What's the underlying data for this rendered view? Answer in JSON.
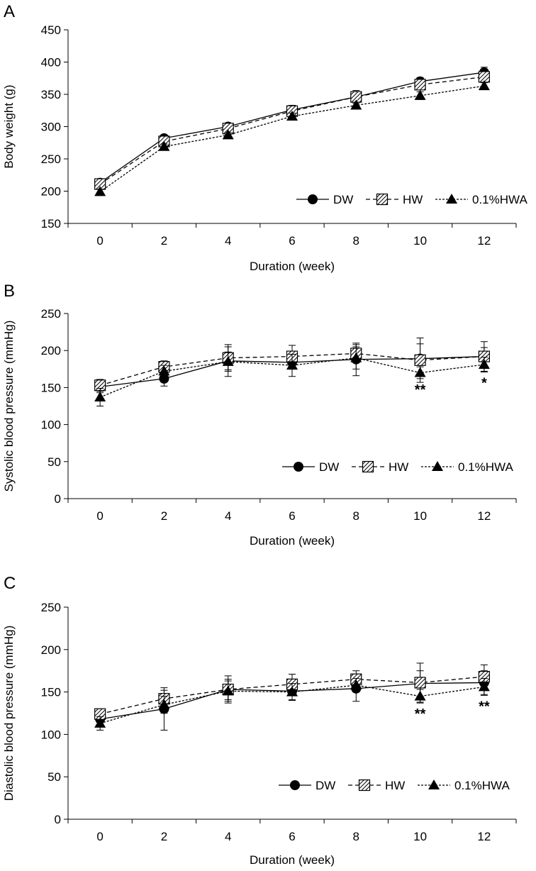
{
  "legend_items": [
    {
      "key": "DW",
      "label": "DW",
      "marker": "circle",
      "dash": "solid"
    },
    {
      "key": "HW",
      "label": "HW",
      "marker": "hatched-square",
      "dash": "dashed"
    },
    {
      "key": "HWA",
      "label": "0.1%HWA",
      "marker": "triangle",
      "dash": "dotted"
    }
  ],
  "chart_data": [
    {
      "panel_label": "A",
      "type": "line",
      "ylabel": "Body weight (g)",
      "xlabel": "Duration (week)",
      "categories": [
        "0",
        "2",
        "4",
        "6",
        "8",
        "10",
        "12"
      ],
      "ylim": [
        150,
        450
      ],
      "yticks": [
        150,
        200,
        250,
        300,
        350,
        400,
        450
      ],
      "legend_position": "bottom-right",
      "series": [
        {
          "name": "DW",
          "values": [
            213,
            282,
            300,
            326,
            346,
            370,
            384
          ],
          "errors": [
            5,
            5,
            5,
            7,
            6,
            6,
            8
          ]
        },
        {
          "name": "HW",
          "values": [
            211,
            277,
            297,
            324,
            346,
            365,
            377
          ],
          "errors": [
            5,
            5,
            5,
            8,
            10,
            7,
            8
          ]
        },
        {
          "name": "0.1%HWA",
          "values": [
            199,
            269,
            287,
            316,
            333,
            348,
            363
          ],
          "errors": [
            4,
            4,
            4,
            5,
            5,
            6,
            5
          ]
        }
      ],
      "annotations": []
    },
    {
      "panel_label": "B",
      "type": "line",
      "ylabel": "Systolic blood pressure (mmHg)",
      "xlabel": "Duration (week)",
      "categories": [
        "0",
        "2",
        "4",
        "6",
        "8",
        "10",
        "12"
      ],
      "ylim": [
        0,
        250
      ],
      "yticks": [
        0,
        50,
        100,
        150,
        200,
        250
      ],
      "legend_position": "bottom-right",
      "series": [
        {
          "name": "DW",
          "values": [
            151,
            162,
            186,
            184,
            188,
            189,
            192
          ],
          "errors": [
            8,
            10,
            12,
            8,
            22,
            20,
            12
          ]
        },
        {
          "name": "HW",
          "values": [
            153,
            178,
            190,
            192,
            196,
            187,
            192
          ],
          "errors": [
            8,
            8,
            18,
            15,
            12,
            30,
            20
          ]
        },
        {
          "name": "0.1%HWA",
          "values": [
            137,
            172,
            185,
            180,
            190,
            170,
            181
          ],
          "errors": [
            12,
            8,
            20,
            15,
            15,
            8,
            10
          ]
        }
      ],
      "annotations": [
        {
          "category": "10",
          "text": "**"
        },
        {
          "category": "12",
          "text": "*"
        }
      ]
    },
    {
      "panel_label": "C",
      "type": "line",
      "ylabel": "Diastolic blood pressure (mmHg)",
      "xlabel": "Duration (week)",
      "categories": [
        "0",
        "2",
        "4",
        "6",
        "8",
        "10",
        "12"
      ],
      "ylim": [
        0,
        250
      ],
      "yticks": [
        0,
        50,
        100,
        150,
        200,
        250
      ],
      "legend_position": "bottom-right",
      "series": [
        {
          "name": "DW",
          "values": [
            118,
            130,
            153,
            151,
            154,
            160,
            161
          ],
          "errors": [
            8,
            25,
            12,
            10,
            15,
            15,
            14
          ]
        },
        {
          "name": "HW",
          "values": [
            124,
            142,
            153,
            159,
            165,
            161,
            168
          ],
          "errors": [
            6,
            10,
            16,
            12,
            10,
            23,
            14
          ]
        },
        {
          "name": "0.1%HWA",
          "values": [
            113,
            135,
            151,
            150,
            158,
            145,
            156
          ],
          "errors": [
            8,
            10,
            12,
            10,
            8,
            8,
            10
          ]
        }
      ],
      "annotations": [
        {
          "category": "10",
          "text": "**"
        },
        {
          "category": "12",
          "text": "**"
        }
      ]
    }
  ]
}
